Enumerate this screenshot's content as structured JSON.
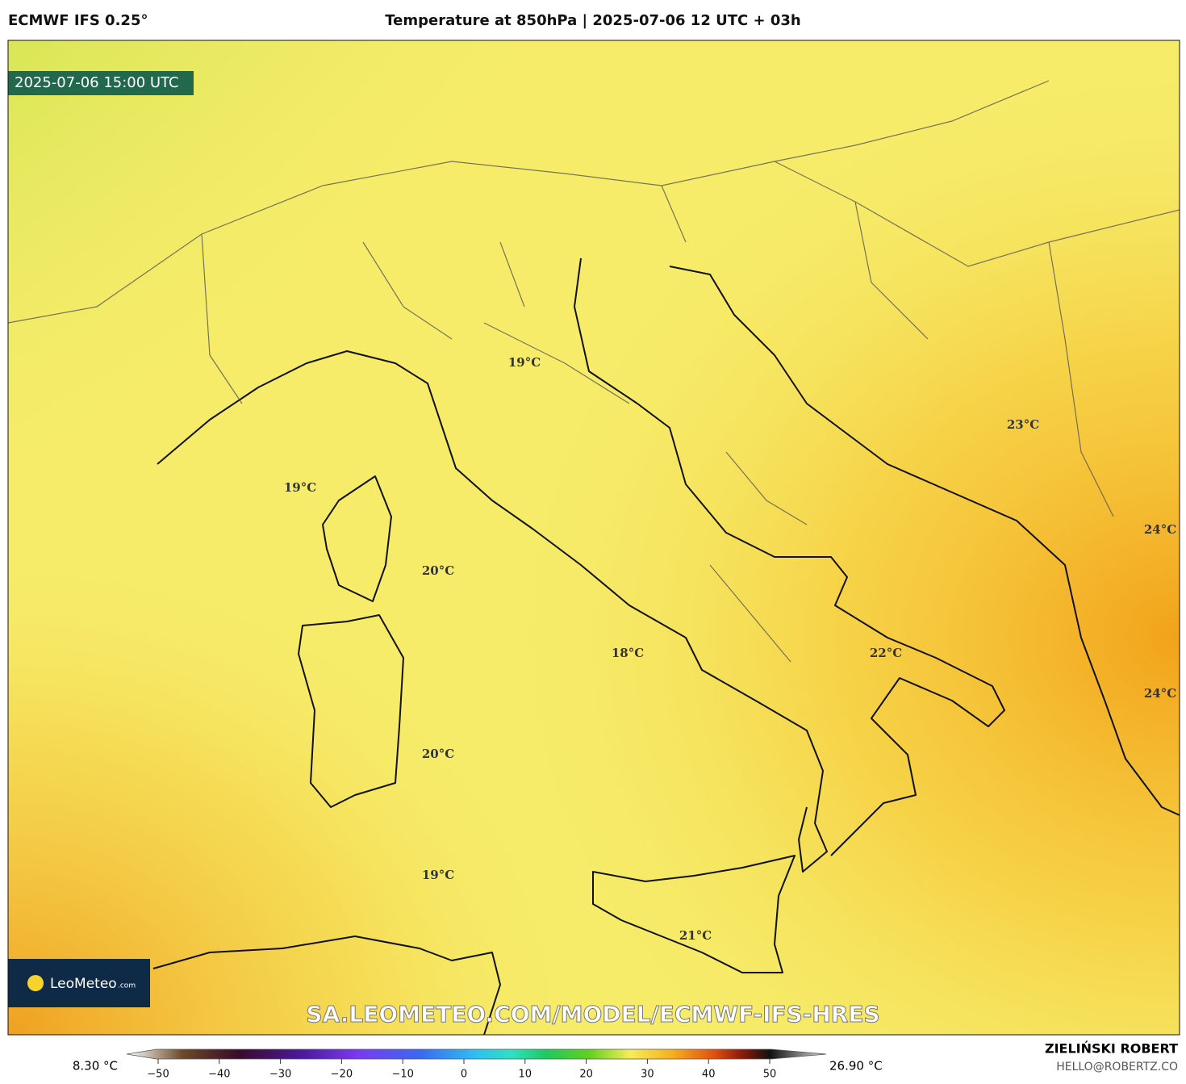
{
  "header": {
    "model": "ECMWF IFS 0.25°",
    "title": "Temperature at 850hPa | 2025-07-06 12 UTC + 03h"
  },
  "map": {
    "valid_time": "2025-07-06 15:00 UTC",
    "labels": [
      "19°C",
      "19°C",
      "20°C",
      "18°C",
      "22°C",
      "23°C",
      "24°C",
      "24°C",
      "20°C",
      "19°C",
      "21°C"
    ],
    "watermark": "SA.LEOMETEO.COM/MODEL/ECMWF-IFS-HRES",
    "logo": {
      "name": "LeoMeteo",
      "suffix": ".com"
    }
  },
  "colorbar": {
    "min_label": "8.30 °C",
    "max_label": "26.90 °C",
    "ticks": [
      {
        "value": -50,
        "label": "−50"
      },
      {
        "value": -40,
        "label": "−40"
      },
      {
        "value": -30,
        "label": "−30"
      },
      {
        "value": -20,
        "label": "−20"
      },
      {
        "value": -10,
        "label": "−10"
      },
      0,
      10,
      20,
      30,
      40,
      50
    ]
  },
  "credits": {
    "author": "ZIELIŃSKI ROBERT",
    "email": "HELLO@ROBERTZ.CO"
  }
}
